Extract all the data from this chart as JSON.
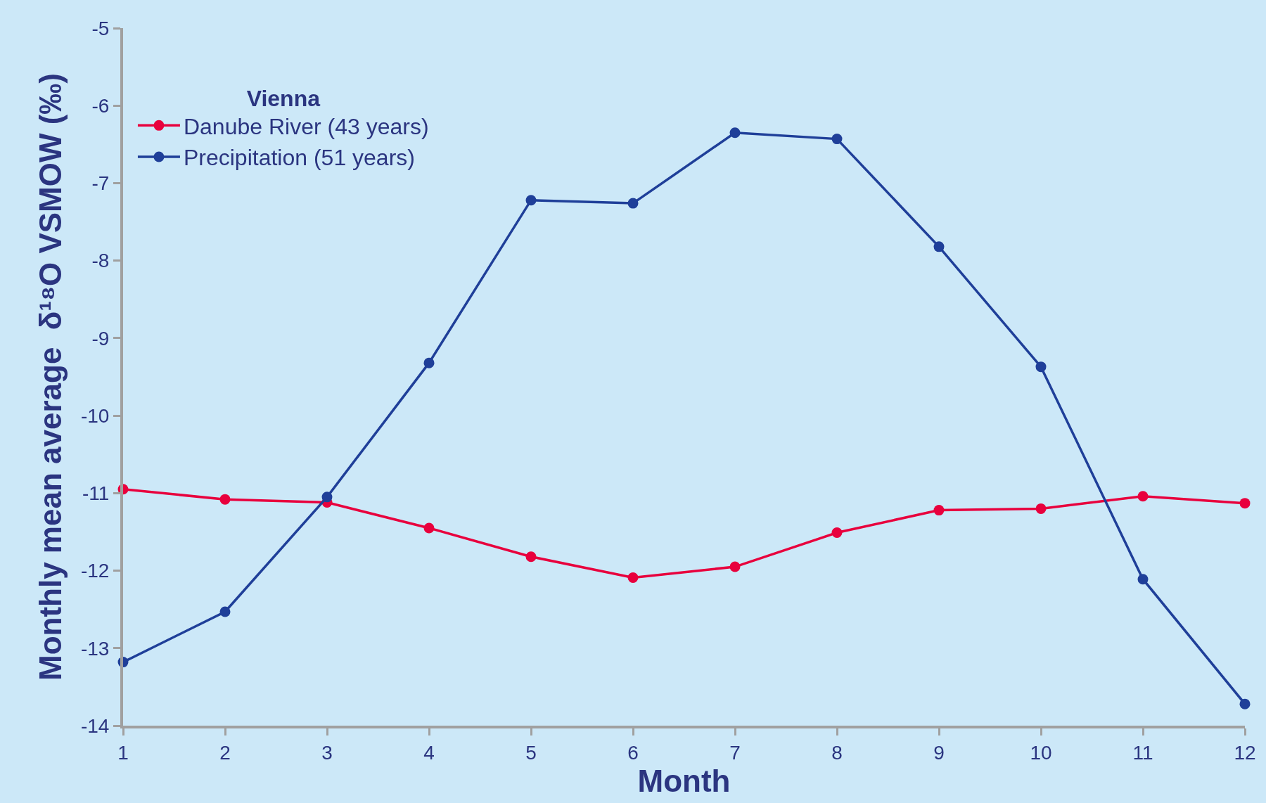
{
  "chart_data": {
    "type": "line",
    "xlabel": "Month",
    "ylabel": "Monthly mean average  δ¹⁸O VSMOW (‰)",
    "legend_title": "Vienna",
    "legend": "top left",
    "grid": false,
    "marker": "circle",
    "line_style": "solid",
    "x": [
      1,
      2,
      3,
      4,
      5,
      6,
      7,
      8,
      9,
      10,
      11,
      12
    ],
    "xlim": [
      1,
      12
    ],
    "xticks": [
      1,
      2,
      3,
      4,
      5,
      6,
      7,
      8,
      9,
      10,
      11,
      12
    ],
    "ylim": [
      -14,
      -5
    ],
    "yticks": [
      -14,
      -13,
      -12,
      -11,
      -10,
      -9,
      -8,
      -7,
      -6,
      -5
    ],
    "series": [
      {
        "name": "Danube River (43 years)",
        "color": "#e8003d",
        "values": [
          -10.95,
          -11.08,
          -11.12,
          -11.45,
          -11.82,
          -12.09,
          -11.95,
          -11.51,
          -11.22,
          -11.2,
          -11.04,
          -11.13
        ]
      },
      {
        "name": "Precipitation (51 years)",
        "color": "#1f3f99",
        "values": [
          -13.18,
          -12.53,
          -11.05,
          -9.32,
          -7.22,
          -7.26,
          -6.35,
          -6.43,
          -7.82,
          -9.37,
          -12.11,
          -13.72
        ]
      }
    ]
  }
}
